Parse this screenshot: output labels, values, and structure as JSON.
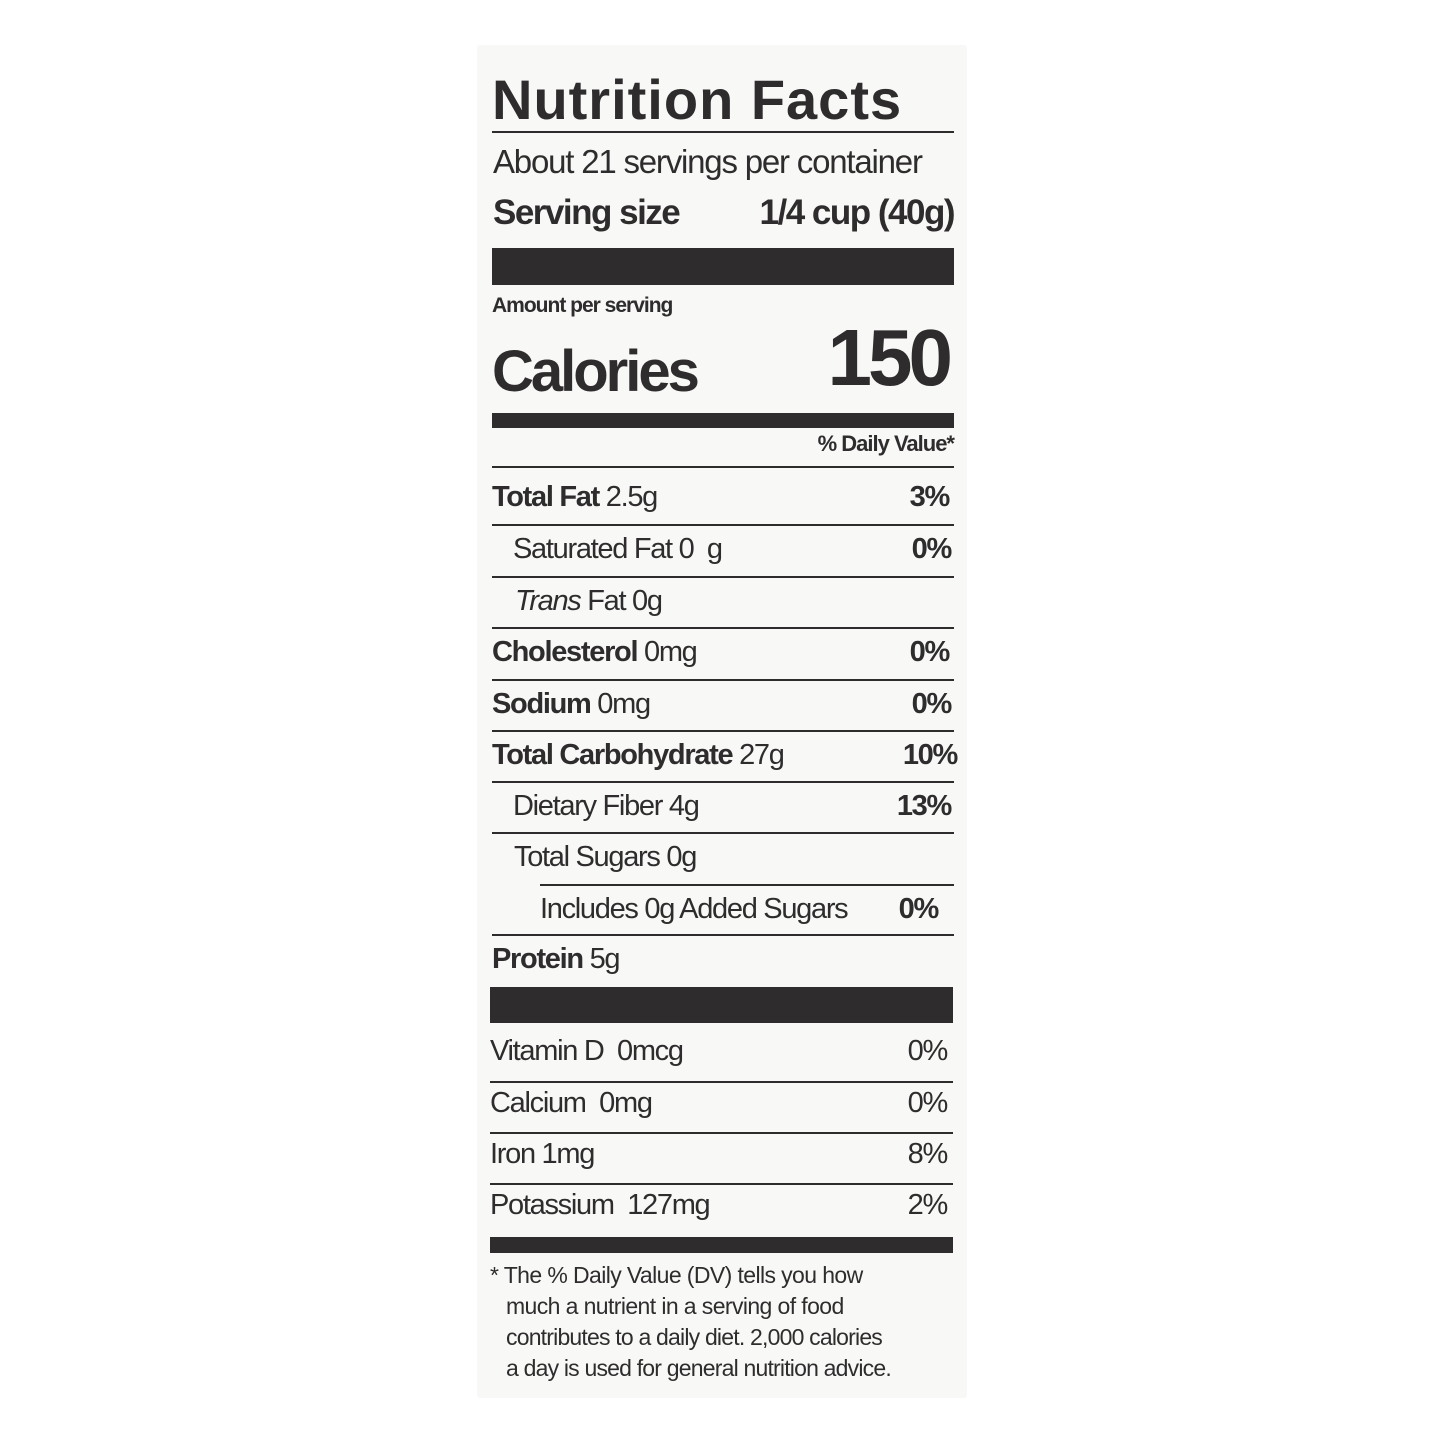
{
  "title": "Nutrition Facts",
  "servings_per_container": "About 21 servings per container",
  "serving_size": {
    "label": "Serving size",
    "value": "1/4 cup (40g)"
  },
  "amount_per_serving": "Amount per serving",
  "calories": {
    "label": "Calories",
    "value": "150"
  },
  "daily_value_header": "% Daily Value*",
  "nutrients": [
    {
      "name": "Total Fat",
      "amount": "2.5g",
      "dv": "3%"
    },
    {
      "name": "Saturated Fat",
      "amount": "0  g",
      "dv": "0%"
    },
    {
      "name": "Trans",
      "name_suffix": "Fat",
      "amount": "0g",
      "dv": ""
    },
    {
      "name": "Cholesterol",
      "amount": "0mg",
      "dv": "0%"
    },
    {
      "name": "Sodium",
      "amount": "0mg",
      "dv": "0%"
    },
    {
      "name": "Total Carbohydrate",
      "amount": "27g",
      "dv": "10%"
    },
    {
      "name": "Dietary Fiber",
      "amount": "4g",
      "dv": "13%"
    },
    {
      "name": "Total Sugars",
      "amount": "0g",
      "dv": ""
    },
    {
      "name": "Includes 0g Added Sugars",
      "amount": "",
      "dv": "0%"
    },
    {
      "name": "Protein",
      "amount": "5g",
      "dv": ""
    }
  ],
  "vitamins": [
    {
      "name": "Vitamin D",
      "amount": "0mcg",
      "dv": "0%"
    },
    {
      "name": "Calcium",
      "amount": "0mg",
      "dv": "0%"
    },
    {
      "name": "Iron",
      "amount": "1mg",
      "dv": "8%"
    },
    {
      "name": "Potassium",
      "amount": "127mg",
      "dv": "2%"
    }
  ],
  "footnote": [
    "* The % Daily Value (DV) tells you how",
    "much a nutrient in a serving of food",
    "contributes to a daily diet. 2,000 calories",
    "a day is used for general nutrition advice."
  ]
}
